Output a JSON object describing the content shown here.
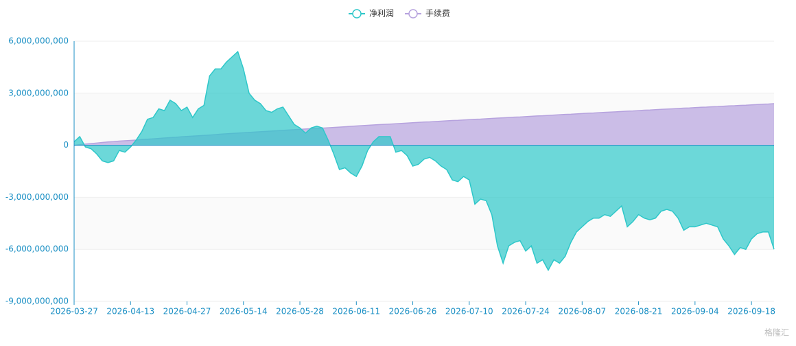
{
  "chart_data": {
    "type": "area",
    "watermark": "格隆汇",
    "categories": [
      "2026-03-27",
      null,
      null,
      null,
      null,
      null,
      null,
      null,
      null,
      null,
      "2026-04-13",
      null,
      null,
      null,
      null,
      null,
      null,
      null,
      null,
      null,
      "2026-04-27",
      null,
      null,
      null,
      null,
      null,
      null,
      null,
      null,
      null,
      "2026-05-14",
      null,
      null,
      null,
      null,
      null,
      null,
      null,
      null,
      null,
      "2026-05-28",
      null,
      null,
      null,
      null,
      null,
      null,
      null,
      null,
      null,
      "2026-06-11",
      null,
      null,
      null,
      null,
      null,
      null,
      null,
      null,
      null,
      "2026-06-26",
      null,
      null,
      null,
      null,
      null,
      null,
      null,
      null,
      null,
      "2026-07-10",
      null,
      null,
      null,
      null,
      null,
      null,
      null,
      null,
      null,
      "2026-07-24",
      null,
      null,
      null,
      null,
      null,
      null,
      null,
      null,
      null,
      "2026-08-07",
      null,
      null,
      null,
      null,
      null,
      null,
      null,
      null,
      null,
      "2026-08-21",
      null,
      null,
      null,
      null,
      null,
      null,
      null,
      null,
      null,
      "2026-09-04",
      null,
      null,
      null,
      null,
      null,
      null,
      null,
      null,
      null,
      "2026-09-18",
      null,
      null,
      null,
      null
    ],
    "series": [
      {
        "name": "净利润",
        "color": "#2ec7c9",
        "values": [
          200000000,
          500000000,
          -100000000,
          -200000000,
          -500000000,
          -900000000,
          -1000000000,
          -900000000,
          -300000000,
          -400000000,
          -100000000,
          300000000,
          800000000,
          1500000000,
          1600000000,
          2100000000,
          2000000000,
          2600000000,
          2400000000,
          2000000000,
          2200000000,
          1600000000,
          2100000000,
          2300000000,
          4000000000,
          4400000000,
          4400000000,
          4800000000,
          5100000000,
          5400000000,
          4400000000,
          3000000000,
          2600000000,
          2400000000,
          2000000000,
          1900000000,
          2100000000,
          2200000000,
          1700000000,
          1200000000,
          1000000000,
          700000000,
          1000000000,
          1100000000,
          1000000000,
          300000000,
          -500000000,
          -1400000000,
          -1300000000,
          -1600000000,
          -1800000000,
          -1200000000,
          -300000000,
          200000000,
          500000000,
          500000000,
          500000000,
          -400000000,
          -300000000,
          -600000000,
          -1200000000,
          -1100000000,
          -800000000,
          -700000000,
          -900000000,
          -1200000000,
          -1400000000,
          -2000000000,
          -2100000000,
          -1800000000,
          -2000000000,
          -3400000000,
          -3100000000,
          -3200000000,
          -4000000000,
          -5800000000,
          -6800000000,
          -5800000000,
          -5600000000,
          -5500000000,
          -6100000000,
          -5800000000,
          -6800000000,
          -6600000000,
          -7200000000,
          -6600000000,
          -6800000000,
          -6400000000,
          -5600000000,
          -5000000000,
          -4700000000,
          -4400000000,
          -4200000000,
          -4200000000,
          -4000000000,
          -4100000000,
          -3800000000,
          -3500000000,
          -4700000000,
          -4400000000,
          -4000000000,
          -4200000000,
          -4300000000,
          -4200000000,
          -3800000000,
          -3700000000,
          -3800000000,
          -4200000000,
          -4900000000,
          -4700000000,
          -4700000000,
          -4600000000,
          -4500000000,
          -4600000000,
          -4700000000,
          -5400000000,
          -5800000000,
          -6300000000,
          -5900000000,
          -6000000000,
          -5400000000,
          -5100000000,
          -5000000000,
          -5000000000,
          -6000000000
        ]
      },
      {
        "name": "手续费",
        "color": "#b6a2de",
        "values": [
          0,
          40000000,
          70000000,
          100000000,
          130000000,
          160000000,
          190000000,
          210000000,
          240000000,
          260000000,
          280000000,
          300000000,
          330000000,
          350000000,
          370000000,
          395000000,
          420000000,
          440000000,
          460000000,
          490000000,
          510000000,
          530000000,
          550000000,
          570000000,
          590000000,
          615000000,
          640000000,
          660000000,
          680000000,
          700000000,
          720000000,
          740000000,
          760000000,
          780000000,
          800000000,
          820000000,
          840000000,
          860000000,
          880000000,
          900000000,
          920000000,
          940000000,
          960000000,
          980000000,
          990000000,
          1010000000,
          1030000000,
          1050000000,
          1070000000,
          1090000000,
          1110000000,
          1130000000,
          1150000000,
          1170000000,
          1190000000,
          1205000000,
          1220000000,
          1240000000,
          1260000000,
          1280000000,
          1300000000,
          1320000000,
          1340000000,
          1350000000,
          1370000000,
          1390000000,
          1410000000,
          1430000000,
          1440000000,
          1460000000,
          1480000000,
          1500000000,
          1510000000,
          1530000000,
          1550000000,
          1565000000,
          1580000000,
          1600000000,
          1620000000,
          1630000000,
          1650000000,
          1670000000,
          1690000000,
          1700000000,
          1720000000,
          1740000000,
          1760000000,
          1780000000,
          1790000000,
          1810000000,
          1830000000,
          1850000000,
          1860000000,
          1880000000,
          1900000000,
          1915000000,
          1930000000,
          1950000000,
          1970000000,
          1980000000,
          2000000000,
          2020000000,
          2030000000,
          2050000000,
          2070000000,
          2085000000,
          2100000000,
          2120000000,
          2140000000,
          2150000000,
          2170000000,
          2190000000,
          2200000000,
          2220000000,
          2230000000,
          2250000000,
          2270000000,
          2280000000,
          2300000000,
          2310000000,
          2330000000,
          2350000000,
          2370000000,
          2380000000,
          2400000000
        ]
      }
    ],
    "ylim": [
      -9000000000,
      6000000000
    ],
    "yticks": [
      {
        "value": -9000000000,
        "label": "-9,000,000,000"
      },
      {
        "value": -6000000000,
        "label": "-6,000,000,000"
      },
      {
        "value": -3000000000,
        "label": "-3,000,000,000"
      },
      0,
      {
        "value": 3000000000,
        "label": "3,000,000,000"
      },
      {
        "value": 6000000000,
        "label": "6,000,000,000"
      }
    ],
    "grid": true,
    "legend": "top"
  }
}
